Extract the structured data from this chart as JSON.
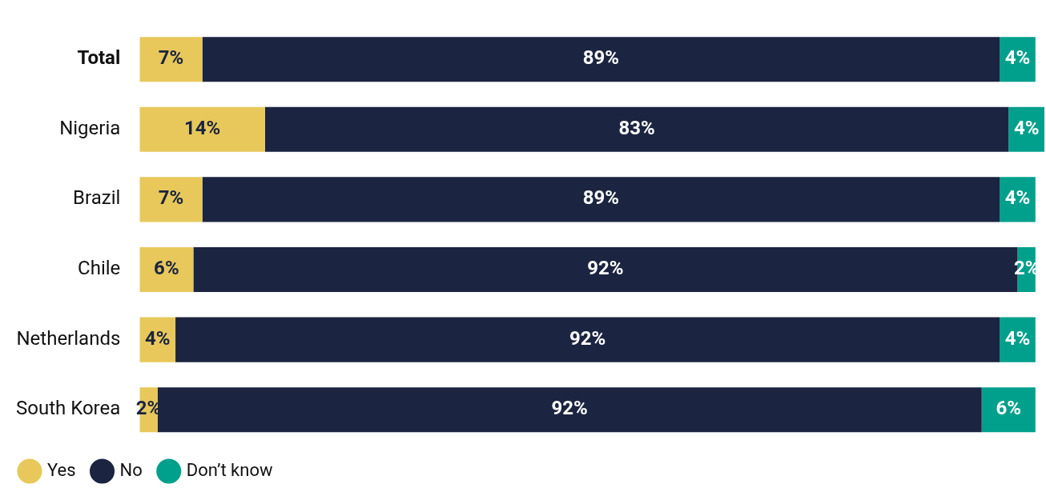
{
  "chart_data": {
    "type": "bar",
    "orientation": "horizontal",
    "stacked": true,
    "legend": "bottom left",
    "categories": [
      "Total",
      "Nigeria",
      "Brazil",
      "Chile",
      "Netherlands",
      "South Korea"
    ],
    "series": [
      {
        "name": "Yes",
        "color": "#e8c85a",
        "values": [
          7,
          14,
          7,
          6,
          4,
          2
        ],
        "value_labels": [
          "7%",
          "14%",
          "7%",
          "6%",
          "4%",
          "2%"
        ]
      },
      {
        "name": "No",
        "color": "#1b2440",
        "values": [
          89,
          83,
          89,
          92,
          92,
          92
        ],
        "value_labels": [
          "89%",
          "83%",
          "89%",
          "92%",
          "92%",
          "92%"
        ]
      },
      {
        "name": "Don’t know",
        "color": "#00a08c",
        "values": [
          4,
          4,
          4,
          2,
          4,
          6
        ],
        "value_labels": [
          "4%",
          "4%",
          "4%",
          "2%",
          "4%",
          "6%"
        ]
      }
    ]
  }
}
